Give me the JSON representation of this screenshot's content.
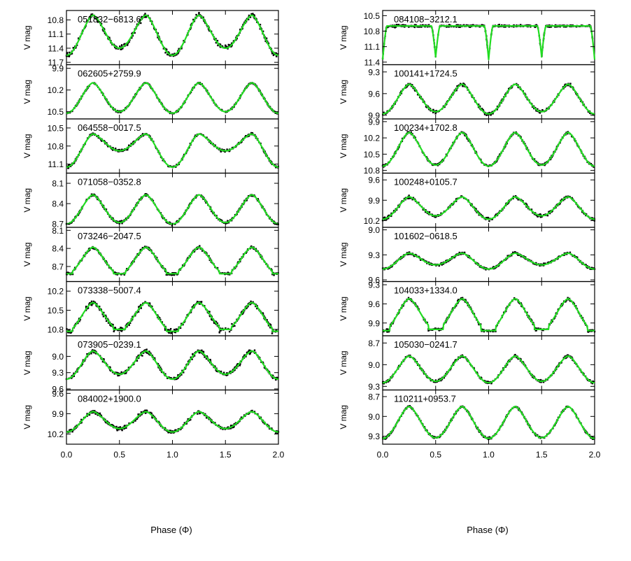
{
  "figure": {
    "x_ticks": [
      0.0,
      0.5,
      1.0,
      1.5,
      2.0
    ],
    "x_tick_labels": [
      "0.0",
      "0.5",
      "1.0",
      "1.5",
      "2.0"
    ],
    "xlabel": "Phase (Φ)",
    "ylabel": "V mag",
    "colors": {
      "model": "#22dd22",
      "points": "#000000",
      "frame": "#000000"
    }
  },
  "chart_data": [
    {
      "type": "scatter",
      "column": "left",
      "title": "051832−6813.6",
      "ylim": [
        11.75,
        10.6
      ],
      "yticks": [
        10.8,
        11.1,
        11.4,
        11.7
      ],
      "ytick_labels": [
        "10.8",
        "11.1",
        "11.4",
        "11.7"
      ],
      "xlim": [
        0.0,
        2.0
      ],
      "max_mag": 10.7,
      "min1_mag": 11.55,
      "min2_mag": 11.4,
      "scatter": 0.07,
      "ecl_width": 0
    },
    {
      "type": "scatter",
      "column": "left",
      "title": "062605+2759.9",
      "ylim": [
        10.6,
        9.85
      ],
      "yticks": [
        9.9,
        10.2,
        10.5
      ],
      "ytick_labels": [
        "9.9",
        "10.2",
        "10.5"
      ],
      "xlim": [
        0.0,
        2.0
      ],
      "max_mag": 10.1,
      "min1_mag": 10.52,
      "min2_mag": 10.5,
      "scatter": 0.015,
      "ecl_width": 0
    },
    {
      "type": "scatter",
      "column": "left",
      "title": "064558−0017.5",
      "ylim": [
        11.25,
        10.35
      ],
      "yticks": [
        10.5,
        10.8,
        11.1
      ],
      "ytick_labels": [
        "10.5",
        "10.8",
        "11.1"
      ],
      "xlim": [
        0.0,
        2.0
      ],
      "max_mag": 10.6,
      "min1_mag": 11.15,
      "min2_mag": 10.88,
      "scatter": 0.03,
      "ecl_width": 0
    },
    {
      "type": "scatter",
      "column": "left",
      "title": "071058−0352.8",
      "ylim": [
        8.75,
        7.95
      ],
      "yticks": [
        8.1,
        8.4,
        8.7
      ],
      "ytick_labels": [
        "8.1",
        "8.4",
        "8.7"
      ],
      "xlim": [
        0.0,
        2.0
      ],
      "max_mag": 8.27,
      "min1_mag": 8.7,
      "min2_mag": 8.68,
      "scatter": 0.025,
      "ecl_width": 0
    },
    {
      "type": "scatter",
      "column": "left",
      "title": "073246−2047.5",
      "ylim": [
        8.95,
        8.05
      ],
      "yticks": [
        8.1,
        8.4,
        8.7
      ],
      "ytick_labels": [
        "8.1",
        "8.4",
        "8.7"
      ],
      "xlim": [
        0.0,
        2.0
      ],
      "max_mag": 8.38,
      "min1_mag": 8.82,
      "min2_mag": 8.82,
      "scatter": 0.03,
      "ecl_width": 0.06
    },
    {
      "type": "scatter",
      "column": "left",
      "title": "073338−5007.4",
      "ylim": [
        10.9,
        10.05
      ],
      "yticks": [
        10.2,
        10.5,
        10.8
      ],
      "ytick_labels": [
        "10.2",
        "10.5",
        "10.8"
      ],
      "xlim": [
        0.0,
        2.0
      ],
      "max_mag": 10.38,
      "min1_mag": 10.83,
      "min2_mag": 10.8,
      "scatter": 0.05,
      "ecl_width": 0.06
    },
    {
      "type": "scatter",
      "column": "left",
      "title": "073905−0239.1",
      "ylim": [
        9.62,
        8.62
      ],
      "yticks": [
        9.0,
        9.3,
        9.6
      ],
      "ytick_labels": [
        "9.0",
        "9.3",
        "9.6"
      ],
      "xlim": [
        0.0,
        2.0
      ],
      "max_mag": 8.9,
      "min1_mag": 9.42,
      "min2_mag": 9.33,
      "scatter": 0.05,
      "ecl_width": 0
    },
    {
      "type": "scatter",
      "column": "left",
      "title": "084002+1900.0",
      "ylim": [
        10.35,
        9.55
      ],
      "yticks": [
        9.6,
        9.9,
        10.2
      ],
      "ytick_labels": [
        "9.6",
        "9.9",
        "10.2"
      ],
      "xlim": [
        0.0,
        2.0
      ],
      "max_mag": 9.87,
      "min1_mag": 10.17,
      "min2_mag": 10.12,
      "scatter": 0.035,
      "ecl_width": 0
    },
    {
      "type": "scatter",
      "column": "right",
      "title": "084108−3212.1",
      "ylim": [
        11.45,
        10.4
      ],
      "yticks": [
        10.5,
        10.8,
        11.1,
        11.4
      ],
      "ytick_labels": [
        "10.5",
        "10.8",
        "11.1",
        "11.4"
      ],
      "xlim": [
        0.0,
        2.0
      ],
      "max_mag": 10.7,
      "min1_mag": 11.35,
      "min2_mag": 11.3,
      "scatter": 0.03,
      "ecl_width": 0.04,
      "detached": true
    },
    {
      "type": "scatter",
      "column": "right",
      "title": "100141+1724.5",
      "ylim": [
        9.95,
        9.2
      ],
      "yticks": [
        9.3,
        9.6,
        9.9
      ],
      "ytick_labels": [
        "9.3",
        "9.6",
        "9.9"
      ],
      "xlim": [
        0.0,
        2.0
      ],
      "max_mag": 9.47,
      "min1_mag": 9.88,
      "min2_mag": 9.85,
      "scatter": 0.03,
      "ecl_width": 0
    },
    {
      "type": "scatter",
      "column": "right",
      "title": "100234+1702.8",
      "ylim": [
        10.85,
        9.85
      ],
      "yticks": [
        9.9,
        10.2,
        10.5,
        10.8
      ],
      "ytick_labels": [
        "9.9",
        "10.2",
        "10.5",
        "10.8"
      ],
      "xlim": [
        0.0,
        2.0
      ],
      "max_mag": 10.1,
      "min1_mag": 10.72,
      "min2_mag": 10.7,
      "scatter": 0.03,
      "ecl_width": 0
    },
    {
      "type": "scatter",
      "column": "right",
      "title": "100248+0105.7",
      "ylim": [
        10.3,
        9.5
      ],
      "yticks": [
        9.6,
        9.9,
        10.2
      ],
      "ytick_labels": [
        "9.6",
        "9.9",
        "10.2"
      ],
      "xlim": [
        0.0,
        2.0
      ],
      "max_mag": 9.85,
      "min1_mag": 10.18,
      "min2_mag": 10.13,
      "scatter": 0.03,
      "ecl_width": 0
    },
    {
      "type": "scatter",
      "column": "right",
      "title": "101602−0618.5",
      "ylim": [
        9.62,
        8.97
      ],
      "yticks": [
        9.0,
        9.3,
        9.6
      ],
      "ytick_labels": [
        "9.0",
        "9.3",
        "9.6"
      ],
      "xlim": [
        0.0,
        2.0
      ],
      "max_mag": 9.28,
      "min1_mag": 9.47,
      "min2_mag": 9.42,
      "scatter": 0.02,
      "ecl_width": 0
    },
    {
      "type": "scatter",
      "column": "right",
      "title": "104033+1334.0",
      "ylim": [
        10.1,
        9.25
      ],
      "yticks": [
        9.3,
        9.6,
        9.9
      ],
      "ytick_labels": [
        "9.3",
        "9.6",
        "9.9"
      ],
      "xlim": [
        0.0,
        2.0
      ],
      "max_mag": 9.52,
      "min1_mag": 10.02,
      "min2_mag": 10.0,
      "scatter": 0.03,
      "ecl_width": 0.07
    },
    {
      "type": "scatter",
      "column": "right",
      "title": "105030−0241.7",
      "ylim": [
        9.35,
        8.6
      ],
      "yticks": [
        8.7,
        9.0,
        9.3
      ],
      "ytick_labels": [
        "8.7",
        "9.0",
        "9.3"
      ],
      "xlim": [
        0.0,
        2.0
      ],
      "max_mag": 8.88,
      "min1_mag": 9.25,
      "min2_mag": 9.23,
      "scatter": 0.025,
      "ecl_width": 0
    },
    {
      "type": "scatter",
      "column": "right",
      "title": "110211+0953.7",
      "ylim": [
        9.42,
        8.6
      ],
      "yticks": [
        8.7,
        9.0,
        9.3
      ],
      "ytick_labels": [
        "8.7",
        "9.0",
        "9.3"
      ],
      "xlim": [
        0.0,
        2.0
      ],
      "max_mag": 8.85,
      "min1_mag": 9.33,
      "min2_mag": 9.32,
      "scatter": 0.02,
      "ecl_width": 0.03
    }
  ]
}
